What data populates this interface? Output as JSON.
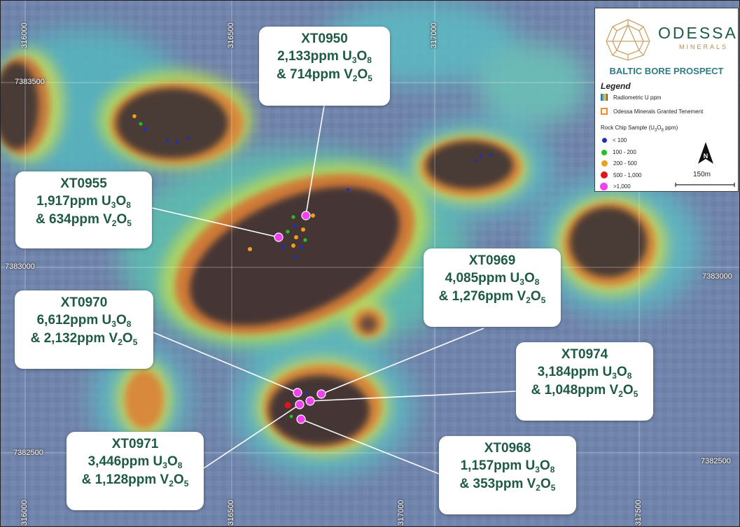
{
  "legend": {
    "brand": "ODESSA",
    "brand_sub": "MINERALS",
    "prospect": "BALTIC BORE PROSPECT",
    "title": "Legend",
    "radiometric": "Radiometric U ppm",
    "tenement": "Odessa Minerals Granted Tenement",
    "rock_chip_title_pre": "Rock Chip Sample (U",
    "rock_chip_title_sub1": "3",
    "rock_chip_title_mid": "O",
    "rock_chip_title_sub2": "8",
    "rock_chip_title_post": " ppm)",
    "classes": [
      {
        "label": "< 100",
        "color": "#1f2fb8"
      },
      {
        "label": "100 - 200",
        "color": "#22c02a"
      },
      {
        "label": "200 - 500",
        "color": "#f0a020"
      },
      {
        "label": "500 - 1,000",
        "color": "#e0141c"
      },
      {
        "label": ">1,000",
        "color": "#f040f0"
      }
    ],
    "north_label": "N",
    "scale_label": "150m"
  },
  "grid": {
    "eastings": [
      "316000",
      "316500",
      "317000",
      "316000",
      "316500",
      "317000",
      "317500"
    ],
    "northings": [
      "7383500",
      "7383000",
      "7383000",
      "7382500",
      "7382500"
    ]
  },
  "callouts": [
    {
      "id": "XT0950",
      "u": "2,133ppm U",
      "v": "& 714ppm V"
    },
    {
      "id": "XT0955",
      "u": "1,917ppm U",
      "v": "& 634ppm V"
    },
    {
      "id": "XT0969",
      "u": "4,085ppm U",
      "v": "& 1,276ppm V"
    },
    {
      "id": "XT0970",
      "u": "6,612ppm U",
      "v": "& 2,132ppm V"
    },
    {
      "id": "XT0974",
      "u": "3,184ppm U",
      "v": "& 1,048ppm V"
    },
    {
      "id": "XT0971",
      "u": "3,446ppm U",
      "v": "& 1,128ppm V"
    },
    {
      "id": "XT0968",
      "u": "1,157ppm U",
      "v": "& 353ppm V"
    }
  ],
  "sub": {
    "u3": "3",
    "o8": "8",
    "v2": "2",
    "o5": "5",
    "O": "O"
  },
  "colors": {
    "accent_green": "#1e5a44",
    "prospect_teal": "#2f7d83",
    "brand_gold": "#b8894a"
  }
}
